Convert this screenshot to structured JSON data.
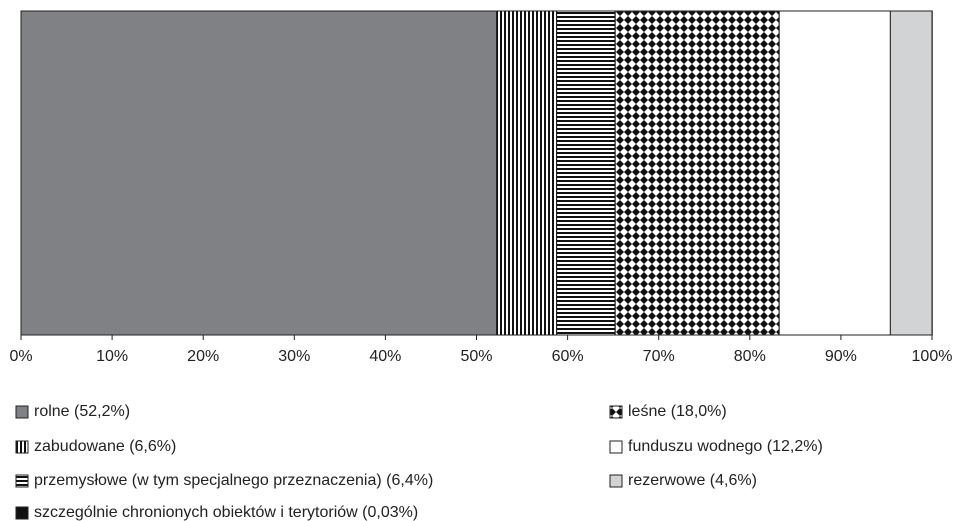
{
  "chart_data": {
    "type": "stacked-bar-horizontal",
    "xlim": [
      0,
      100
    ],
    "xticks": [
      {
        "value": 0,
        "label": "0%"
      },
      {
        "value": 10,
        "label": "10%"
      },
      {
        "value": 20,
        "label": "20%"
      },
      {
        "value": 30,
        "label": "30%"
      },
      {
        "value": 40,
        "label": "40%"
      },
      {
        "value": 50,
        "label": "50%"
      },
      {
        "value": 60,
        "label": "60%"
      },
      {
        "value": 70,
        "label": "70%"
      },
      {
        "value": 80,
        "label": "80%"
      },
      {
        "value": 90,
        "label": "90%"
      },
      {
        "value": 100,
        "label": "100%"
      }
    ],
    "series": [
      {
        "name": "rolne (52,2%)",
        "color": "#808185",
        "pattern": "solid",
        "values": [
          52.2
        ]
      },
      {
        "name": "zabudowane (6,6%)",
        "color": "#111111",
        "pattern": "vertical-stripes",
        "values": [
          6.6
        ]
      },
      {
        "name": "przemysłowe (w tym specjalnego przeznaczenia) (6,4%)",
        "color": "#111111",
        "pattern": "horizontal-stripes",
        "values": [
          6.4
        ]
      },
      {
        "name": "szczególnie chronionych obiektów i terytoriów (0,03%)",
        "color": "#111111",
        "pattern": "solid",
        "values": [
          0.03
        ]
      },
      {
        "name": "leśne (18,0%)",
        "color": "#111111",
        "pattern": "diamonds",
        "values": [
          18.0
        ]
      },
      {
        "name": "funduszu wodnego (12,2%)",
        "color": "#ffffff",
        "pattern": "solid",
        "values": [
          12.2
        ]
      },
      {
        "name": "rezerwowe (4,6%)",
        "color": "#d2d3d5",
        "pattern": "solid",
        "values": [
          4.6
        ]
      }
    ]
  }
}
